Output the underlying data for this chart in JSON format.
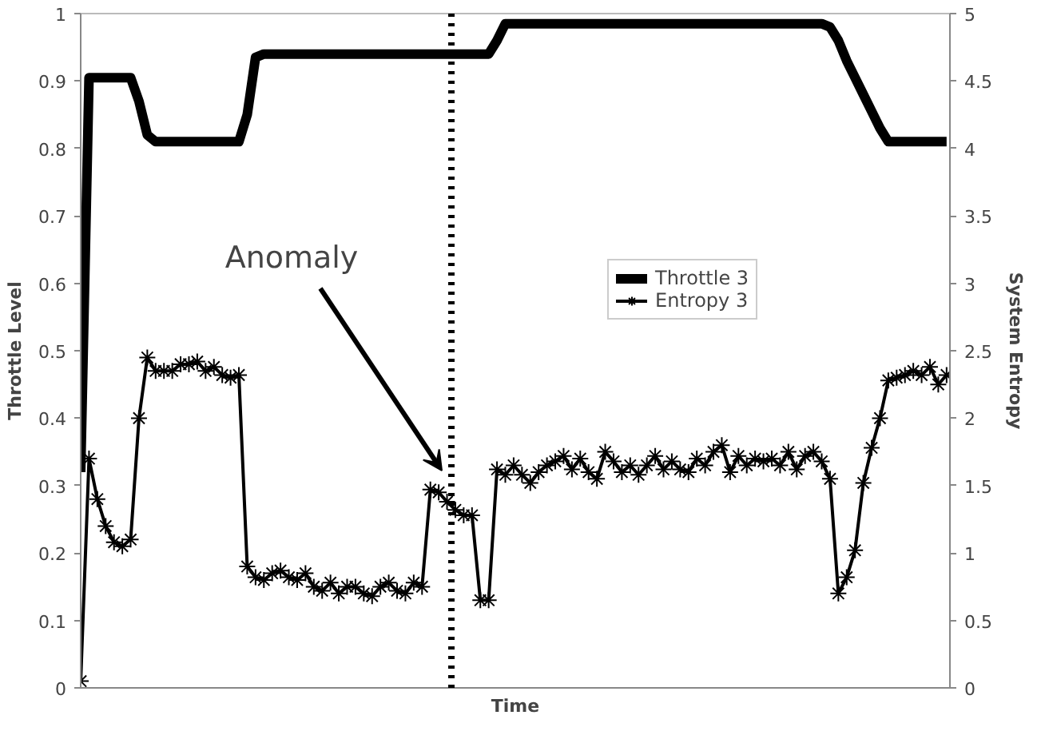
{
  "chart_data": {
    "type": "line",
    "xlabel": "Time",
    "ylabel": "Throttle Level",
    "y2label": "System Entropy",
    "categories": [
      null,
      null,
      null,
      null,
      null,
      null,
      null,
      null,
      null,
      null,
      null,
      null,
      null,
      null,
      null,
      null,
      null,
      null,
      null,
      null,
      null,
      null,
      null,
      null,
      null,
      null,
      null,
      null,
      null,
      null,
      null,
      null,
      null,
      null,
      null,
      null,
      null,
      null,
      null,
      null,
      null,
      null,
      null,
      null,
      null,
      null,
      null,
      null,
      null,
      null,
      null,
      null,
      null,
      null,
      null,
      null,
      null,
      null,
      null,
      null,
      null,
      null,
      null,
      null,
      null,
      null,
      null,
      null,
      null,
      null,
      null,
      null,
      null,
      null,
      null,
      null,
      null,
      null,
      null,
      null,
      null,
      null,
      null,
      null,
      null,
      null,
      null,
      null,
      null,
      null,
      null,
      null,
      null,
      null,
      null,
      null,
      null,
      null,
      null,
      null,
      null,
      null,
      null,
      null,
      null
    ],
    "ylim": [
      0,
      1
    ],
    "yticks": [
      0,
      0.1,
      0.2,
      0.3,
      0.4,
      0.5,
      0.6,
      0.7,
      0.8,
      0.9,
      1
    ],
    "y2lim": [
      0,
      5
    ],
    "y2ticks": [
      0,
      0.5,
      1,
      1.5,
      2,
      2.5,
      3,
      3.5,
      4,
      4.5,
      5
    ],
    "series": [
      {
        "name": "Throttle 3",
        "color": "#000000",
        "marker": "none",
        "values": [
          0.32,
          0.905,
          0.905,
          0.905,
          0.905,
          0.905,
          0.905,
          0.87,
          0.82,
          0.81,
          0.81,
          0.81,
          0.81,
          0.81,
          0.81,
          0.81,
          0.81,
          0.81,
          0.81,
          0.81,
          0.85,
          0.935,
          0.94,
          0.94,
          0.94,
          0.94,
          0.94,
          0.94,
          0.94,
          0.94,
          0.94,
          0.94,
          0.94,
          0.94,
          0.94,
          0.94,
          0.94,
          0.94,
          0.94,
          0.94,
          0.94,
          0.94,
          0.94,
          0.94,
          0.94,
          0.94,
          0.94,
          0.94,
          0.94,
          0.94,
          0.96,
          0.985,
          0.985,
          0.985,
          0.985,
          0.985,
          0.985,
          0.985,
          0.985,
          0.985,
          0.985,
          0.985,
          0.985,
          0.985,
          0.985,
          0.985,
          0.985,
          0.985,
          0.985,
          0.985,
          0.985,
          0.985,
          0.985,
          0.985,
          0.985,
          0.985,
          0.985,
          0.985,
          0.985,
          0.985,
          0.985,
          0.985,
          0.985,
          0.985,
          0.985,
          0.985,
          0.985,
          0.985,
          0.985,
          0.985,
          0.98,
          0.96,
          0.93,
          0.905,
          0.88,
          0.855,
          0.83,
          0.81,
          0.81,
          0.81,
          0.81,
          0.81,
          0.81,
          0.81,
          0.81
        ]
      },
      {
        "name": "Entropy 3",
        "color": "#000000",
        "marker": "cross",
        "axis": "y2",
        "values": [
          0.05,
          1.7,
          1.4,
          1.2,
          1.08,
          1.05,
          1.1,
          2.0,
          2.45,
          2.35,
          2.35,
          2.35,
          2.4,
          2.4,
          2.42,
          2.35,
          2.38,
          2.32,
          2.3,
          2.32,
          0.9,
          0.82,
          0.8,
          0.85,
          0.87,
          0.82,
          0.8,
          0.85,
          0.75,
          0.72,
          0.78,
          0.7,
          0.75,
          0.75,
          0.7,
          0.68,
          0.75,
          0.78,
          0.72,
          0.7,
          0.78,
          0.75,
          1.47,
          1.45,
          1.38,
          1.32,
          1.28,
          1.28,
          0.65,
          0.65,
          1.62,
          1.58,
          1.65,
          1.58,
          1.52,
          1.6,
          1.65,
          1.68,
          1.72,
          1.62,
          1.7,
          1.6,
          1.55,
          1.75,
          1.68,
          1.6,
          1.65,
          1.58,
          1.65,
          1.72,
          1.62,
          1.68,
          1.62,
          1.6,
          1.7,
          1.65,
          1.75,
          1.8,
          1.6,
          1.72,
          1.65,
          1.7,
          1.68,
          1.7,
          1.65,
          1.75,
          1.62,
          1.72,
          1.75,
          1.68,
          1.55,
          0.7,
          0.82,
          1.02,
          1.52,
          1.78,
          2.0,
          2.28,
          2.3,
          2.32,
          2.35,
          2.32,
          2.38,
          2.25,
          2.32
        ]
      }
    ],
    "annotations": [
      "Anomaly"
    ],
    "grid": false,
    "legend": "right"
  }
}
